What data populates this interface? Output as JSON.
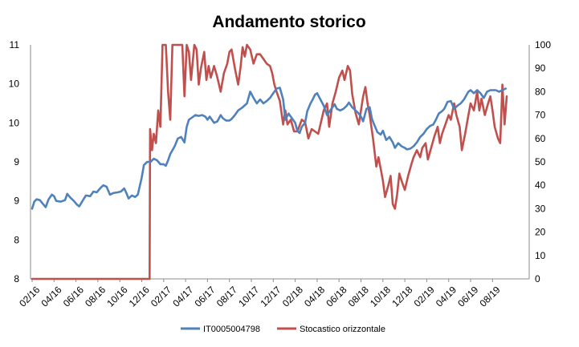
{
  "chart_data": {
    "type": "line",
    "title": "Andamento storico",
    "xlabel": "",
    "ylabel": "",
    "grid": false,
    "legend_position": "bottom",
    "x_ticks": [
      "02/16",
      "04/16",
      "06/16",
      "08/16",
      "10/16",
      "12/16",
      "02/17",
      "04/17",
      "06/17",
      "08/17",
      "10/17",
      "12/17",
      "02/18",
      "04/18",
      "06/18",
      "08/18",
      "10/18",
      "12/18",
      "02/19",
      "04/19",
      "06/19",
      "08/19"
    ],
    "y_left": {
      "range": [
        8,
        11
      ],
      "tick_values": [
        8,
        8.5,
        9,
        9.5,
        10,
        10.5,
        11
      ],
      "tick_labels": [
        "8",
        "8",
        "9",
        "9",
        "10",
        "10",
        "11"
      ]
    },
    "y_right": {
      "range": [
        0,
        100
      ],
      "tick_values": [
        0,
        10,
        20,
        30,
        40,
        50,
        60,
        70,
        80,
        90,
        100
      ],
      "tick_labels": [
        "0",
        "10",
        "20",
        "30",
        "40",
        "50",
        "60",
        "70",
        "80",
        "90",
        "100"
      ]
    },
    "series": [
      {
        "name": "IT0005004798",
        "axis": "left",
        "color": "#4f81bd",
        "points": [
          [
            0.0,
            8.9
          ],
          [
            0.1,
            8.99
          ],
          [
            0.2,
            9.02
          ],
          [
            0.35,
            9.01
          ],
          [
            0.5,
            8.96
          ],
          [
            0.62,
            8.92
          ],
          [
            0.75,
            9.02
          ],
          [
            0.9,
            9.08
          ],
          [
            1.0,
            9.06
          ],
          [
            1.1,
            9.0
          ],
          [
            1.3,
            8.99
          ],
          [
            1.5,
            9.01
          ],
          [
            1.6,
            9.09
          ],
          [
            1.75,
            9.04
          ],
          [
            1.9,
            9.0
          ],
          [
            2.05,
            8.95
          ],
          [
            2.15,
            8.93
          ],
          [
            2.3,
            9.0
          ],
          [
            2.45,
            9.07
          ],
          [
            2.65,
            9.06
          ],
          [
            2.8,
            9.12
          ],
          [
            2.95,
            9.11
          ],
          [
            3.1,
            9.16
          ],
          [
            3.25,
            9.2
          ],
          [
            3.4,
            9.18
          ],
          [
            3.55,
            9.08
          ],
          [
            3.7,
            9.1
          ],
          [
            3.9,
            9.11
          ],
          [
            4.05,
            9.12
          ],
          [
            4.2,
            9.16
          ],
          [
            4.3,
            9.1
          ],
          [
            4.4,
            9.03
          ],
          [
            4.55,
            9.07
          ],
          [
            4.7,
            9.05
          ],
          [
            4.82,
            9.08
          ],
          [
            5.0,
            9.3
          ],
          [
            5.1,
            9.46
          ],
          [
            5.25,
            9.5
          ],
          [
            5.4,
            9.5
          ],
          [
            5.55,
            9.54
          ],
          [
            5.7,
            9.52
          ],
          [
            5.85,
            9.47
          ],
          [
            6.0,
            9.47
          ],
          [
            6.1,
            9.45
          ],
          [
            6.2,
            9.52
          ],
          [
            6.3,
            9.6
          ],
          [
            6.5,
            9.7
          ],
          [
            6.65,
            9.8
          ],
          [
            6.8,
            9.82
          ],
          [
            6.95,
            9.75
          ],
          [
            7.05,
            9.95
          ],
          [
            7.15,
            10.04
          ],
          [
            7.3,
            10.07
          ],
          [
            7.45,
            10.1
          ],
          [
            7.6,
            10.09
          ],
          [
            7.75,
            10.1
          ],
          [
            7.9,
            10.08
          ],
          [
            8.0,
            10.04
          ],
          [
            8.1,
            10.08
          ],
          [
            8.3,
            10.0
          ],
          [
            8.45,
            10.02
          ],
          [
            8.6,
            10.1
          ],
          [
            8.7,
            10.06
          ],
          [
            8.85,
            10.03
          ],
          [
            9.0,
            10.03
          ],
          [
            9.1,
            10.05
          ],
          [
            9.25,
            10.1
          ],
          [
            9.4,
            10.16
          ],
          [
            9.6,
            10.2
          ],
          [
            9.8,
            10.25
          ],
          [
            9.95,
            10.4
          ],
          [
            10.1,
            10.32
          ],
          [
            10.25,
            10.25
          ],
          [
            10.4,
            10.3
          ],
          [
            10.55,
            10.25
          ],
          [
            10.7,
            10.28
          ],
          [
            10.85,
            10.32
          ],
          [
            11.0,
            10.38
          ],
          [
            11.15,
            10.44
          ],
          [
            11.3,
            10.45
          ],
          [
            11.45,
            10.3
          ],
          [
            11.55,
            10.04
          ],
          [
            11.7,
            10.12
          ],
          [
            11.85,
            10.06
          ],
          [
            12.0,
            10.0
          ],
          [
            12.1,
            9.9
          ],
          [
            12.2,
            9.87
          ],
          [
            12.3,
            9.95
          ],
          [
            12.45,
            10.0
          ],
          [
            12.55,
            10.15
          ],
          [
            12.7,
            10.25
          ],
          [
            12.8,
            10.3
          ],
          [
            12.9,
            10.36
          ],
          [
            13.0,
            10.38
          ],
          [
            13.15,
            10.3
          ],
          [
            13.3,
            10.22
          ],
          [
            13.45,
            10.1
          ],
          [
            13.6,
            10.16
          ],
          [
            13.8,
            10.24
          ],
          [
            13.9,
            10.18
          ],
          [
            14.05,
            10.16
          ],
          [
            14.2,
            10.18
          ],
          [
            14.35,
            10.22
          ],
          [
            14.45,
            10.26
          ],
          [
            14.6,
            10.2
          ],
          [
            14.75,
            10.16
          ],
          [
            14.9,
            10.12
          ],
          [
            15.0,
            10.08
          ],
          [
            15.1,
            10.02
          ],
          [
            15.25,
            10.18
          ],
          [
            15.4,
            10.2
          ],
          [
            15.5,
            10.05
          ],
          [
            15.6,
            9.98
          ],
          [
            15.75,
            9.88
          ],
          [
            15.9,
            9.85
          ],
          [
            16.0,
            9.9
          ],
          [
            16.15,
            9.78
          ],
          [
            16.3,
            9.82
          ],
          [
            16.45,
            9.75
          ],
          [
            16.55,
            9.68
          ],
          [
            16.7,
            9.74
          ],
          [
            16.85,
            9.7
          ],
          [
            17.0,
            9.68
          ],
          [
            17.1,
            9.66
          ],
          [
            17.25,
            9.67
          ],
          [
            17.4,
            9.7
          ],
          [
            17.55,
            9.75
          ],
          [
            17.7,
            9.82
          ],
          [
            17.85,
            9.86
          ],
          [
            18.0,
            9.92
          ],
          [
            18.15,
            9.96
          ],
          [
            18.3,
            9.98
          ],
          [
            18.4,
            10.03
          ],
          [
            18.55,
            10.12
          ],
          [
            18.7,
            10.15
          ],
          [
            18.8,
            10.18
          ],
          [
            18.95,
            10.27
          ],
          [
            19.1,
            10.28
          ],
          [
            19.25,
            10.18
          ],
          [
            19.4,
            10.22
          ],
          [
            19.55,
            10.25
          ],
          [
            19.7,
            10.3
          ],
          [
            19.8,
            10.35
          ],
          [
            19.9,
            10.4
          ],
          [
            20.0,
            10.42
          ],
          [
            20.15,
            10.38
          ],
          [
            20.3,
            10.42
          ],
          [
            20.45,
            10.38
          ],
          [
            20.6,
            10.32
          ],
          [
            20.75,
            10.4
          ],
          [
            20.9,
            10.42
          ],
          [
            21.0,
            10.42
          ],
          [
            21.15,
            10.42
          ],
          [
            21.3,
            10.4
          ],
          [
            21.45,
            10.42
          ],
          [
            21.6,
            10.44
          ]
        ]
      },
      {
        "name": "Stocastico orizzontale",
        "axis": "right",
        "color": "#c0504d",
        "points": [
          [
            0.0,
            0
          ],
          [
            1.0,
            0
          ],
          [
            2.0,
            0
          ],
          [
            3.0,
            0
          ],
          [
            4.0,
            0
          ],
          [
            5.0,
            0
          ],
          [
            5.36,
            0
          ],
          [
            5.38,
            64
          ],
          [
            5.47,
            55
          ],
          [
            5.55,
            62
          ],
          [
            5.65,
            58
          ],
          [
            5.75,
            72
          ],
          [
            5.85,
            65
          ],
          [
            5.95,
            100
          ],
          [
            6.1,
            100
          ],
          [
            6.2,
            80
          ],
          [
            6.3,
            68
          ],
          [
            6.4,
            100
          ],
          [
            6.55,
            100
          ],
          [
            6.7,
            100
          ],
          [
            6.85,
            100
          ],
          [
            6.95,
            78
          ],
          [
            7.05,
            100
          ],
          [
            7.15,
            97
          ],
          [
            7.25,
            85
          ],
          [
            7.4,
            100
          ],
          [
            7.5,
            98
          ],
          [
            7.6,
            83
          ],
          [
            7.7,
            90
          ],
          [
            7.85,
            97
          ],
          [
            7.95,
            85
          ],
          [
            8.05,
            91
          ],
          [
            8.15,
            86
          ],
          [
            8.3,
            91
          ],
          [
            8.45,
            86
          ],
          [
            8.6,
            80
          ],
          [
            8.75,
            88
          ],
          [
            8.9,
            92
          ],
          [
            9.0,
            97
          ],
          [
            9.1,
            98
          ],
          [
            9.25,
            90
          ],
          [
            9.4,
            83
          ],
          [
            9.5,
            90
          ],
          [
            9.6,
            99
          ],
          [
            9.7,
            95
          ],
          [
            9.8,
            100
          ],
          [
            9.95,
            98
          ],
          [
            10.1,
            92
          ],
          [
            10.25,
            96
          ],
          [
            10.4,
            96
          ],
          [
            10.55,
            94
          ],
          [
            10.7,
            92
          ],
          [
            10.85,
            91
          ],
          [
            10.95,
            88
          ],
          [
            11.05,
            83
          ],
          [
            11.15,
            80
          ],
          [
            11.3,
            76
          ],
          [
            11.45,
            66
          ],
          [
            11.55,
            72
          ],
          [
            11.65,
            66
          ],
          [
            11.8,
            68
          ],
          [
            11.95,
            63
          ],
          [
            12.1,
            63
          ],
          [
            12.3,
            68
          ],
          [
            12.45,
            67
          ],
          [
            12.6,
            60
          ],
          [
            12.75,
            64
          ],
          [
            12.9,
            63
          ],
          [
            13.05,
            62
          ],
          [
            13.2,
            68
          ],
          [
            13.3,
            72
          ],
          [
            13.45,
            75
          ],
          [
            13.55,
            65
          ],
          [
            13.7,
            75
          ],
          [
            13.85,
            80
          ],
          [
            14.0,
            86
          ],
          [
            14.15,
            89
          ],
          [
            14.25,
            85
          ],
          [
            14.4,
            91
          ],
          [
            14.5,
            89
          ],
          [
            14.6,
            79
          ],
          [
            14.75,
            71
          ],
          [
            14.9,
            66
          ],
          [
            15.0,
            72
          ],
          [
            15.1,
            78
          ],
          [
            15.2,
            82
          ],
          [
            15.3,
            75
          ],
          [
            15.4,
            70
          ],
          [
            15.55,
            60
          ],
          [
            15.7,
            48
          ],
          [
            15.8,
            52
          ],
          [
            15.9,
            47
          ],
          [
            16.0,
            42
          ],
          [
            16.1,
            35
          ],
          [
            16.25,
            40
          ],
          [
            16.35,
            44
          ],
          [
            16.45,
            32
          ],
          [
            16.55,
            30
          ],
          [
            16.65,
            36
          ],
          [
            16.75,
            45
          ],
          [
            16.85,
            42
          ],
          [
            17.0,
            38
          ],
          [
            17.15,
            44
          ],
          [
            17.3,
            49
          ],
          [
            17.4,
            52
          ],
          [
            17.55,
            55
          ],
          [
            17.7,
            52
          ],
          [
            17.8,
            56
          ],
          [
            17.95,
            58
          ],
          [
            18.05,
            51
          ],
          [
            18.2,
            56
          ],
          [
            18.35,
            61
          ],
          [
            18.5,
            65
          ],
          [
            18.6,
            58
          ],
          [
            18.7,
            62
          ],
          [
            18.85,
            66
          ],
          [
            19.0,
            70
          ],
          [
            19.1,
            68
          ],
          [
            19.25,
            75
          ],
          [
            19.35,
            70
          ],
          [
            19.5,
            65
          ],
          [
            19.6,
            55
          ],
          [
            19.75,
            62
          ],
          [
            19.9,
            70
          ],
          [
            20.0,
            75
          ],
          [
            20.15,
            72
          ],
          [
            20.3,
            80
          ],
          [
            20.4,
            72
          ],
          [
            20.5,
            77
          ],
          [
            20.65,
            70
          ],
          [
            20.8,
            75
          ],
          [
            20.9,
            78
          ],
          [
            21.0,
            72
          ],
          [
            21.1,
            65
          ],
          [
            21.25,
            60
          ],
          [
            21.35,
            58
          ],
          [
            21.45,
            83
          ],
          [
            21.55,
            66
          ],
          [
            21.65,
            78
          ]
        ]
      }
    ]
  }
}
